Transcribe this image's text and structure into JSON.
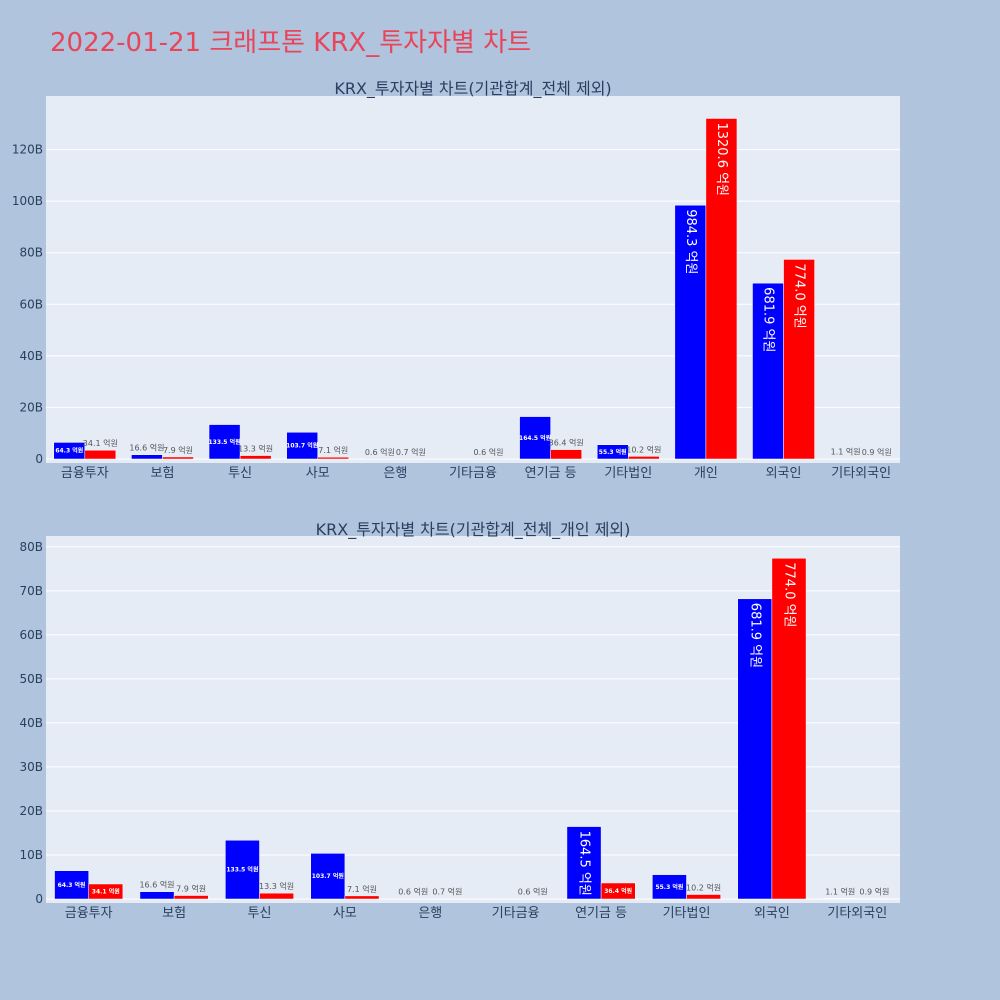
{
  "title": "2022-01-21 크래프톤 KRX_투자자별 차트",
  "colors": {
    "buy": "#0000ff",
    "sell": "#ff0000",
    "plot_bg": "#e5ecf6",
    "page_bg": "#b0c4de",
    "title": "#e8455a"
  },
  "chart_data": [
    {
      "type": "bar",
      "title": "KRX_투자자별 차트(기관합계_전체 제외)",
      "categories": [
        "금융투자",
        "보험",
        "투신",
        "사모",
        "은행",
        "기타금융",
        "연기금 등",
        "기타법인",
        "개인",
        "외국인",
        "기타외국인"
      ],
      "series": [
        {
          "color": "#0000ff",
          "values": [
            6.43,
            1.66,
            13.35,
            10.37,
            0.06,
            0,
            16.45,
            5.53,
            98.43,
            68.19,
            0.11
          ],
          "labels": [
            "64.3 억원",
            "16.6 억원",
            "133.5 억원",
            "103.7 억원",
            "0.6 억원",
            "",
            "164.5 억원",
            "55.3 억원",
            "984.3 억원",
            "681.9 억원",
            "1.1 억원"
          ]
        },
        {
          "color": "#ff0000",
          "values": [
            3.41,
            0.79,
            1.33,
            0.71,
            0.07,
            0.06,
            3.64,
            1.02,
            132.06,
            77.4,
            0.09
          ],
          "labels": [
            "34.1 억원",
            "7.9 억원",
            "13.3 억원",
            "7.1 억원",
            "0.7 억원",
            "0.6 억원",
            "36.4 억원",
            "10.2 억원",
            "1320.6 억원",
            "774.0 억원",
            "0.9 억원"
          ]
        }
      ],
      "ylim": [
        0,
        140
      ],
      "yticks": [
        0,
        20,
        40,
        60,
        80,
        100,
        120
      ],
      "ytick_labels": [
        "0",
        "20B",
        "40B",
        "60B",
        "80B",
        "100B",
        "120B"
      ],
      "grid": true
    },
    {
      "type": "bar",
      "title": "KRX_투자자별 차트(기관합계_전체_개인 제외)",
      "categories": [
        "금융투자",
        "보험",
        "투신",
        "사모",
        "은행",
        "기타금융",
        "연기금 등",
        "기타법인",
        "외국인",
        "기타외국인"
      ],
      "series": [
        {
          "color": "#0000ff",
          "values": [
            6.43,
            1.66,
            13.35,
            10.37,
            0.06,
            0,
            16.45,
            5.53,
            68.19,
            0.11
          ],
          "labels": [
            "64.3 억원",
            "16.6 억원",
            "133.5 억원",
            "103.7 억원",
            "0.6 억원",
            "",
            "164.5 억원",
            "55.3 억원",
            "681.9 억원",
            "1.1 억원"
          ]
        },
        {
          "color": "#ff0000",
          "values": [
            3.41,
            0.79,
            1.33,
            0.71,
            0.07,
            0.06,
            3.64,
            1.02,
            77.4,
            0.09
          ],
          "labels": [
            "34.1 억원",
            "7.9 억원",
            "13.3 억원",
            "7.1 억원",
            "0.7 억원",
            "0.6 억원",
            "36.4 억원",
            "10.2 억원",
            "774.0 억원",
            "0.9 억원"
          ]
        }
      ],
      "ylim": [
        0,
        82
      ],
      "yticks": [
        0,
        10,
        20,
        30,
        40,
        50,
        60,
        70,
        80
      ],
      "ytick_labels": [
        "0",
        "10B",
        "20B",
        "30B",
        "40B",
        "50B",
        "60B",
        "70B",
        "80B"
      ],
      "grid": true
    }
  ]
}
